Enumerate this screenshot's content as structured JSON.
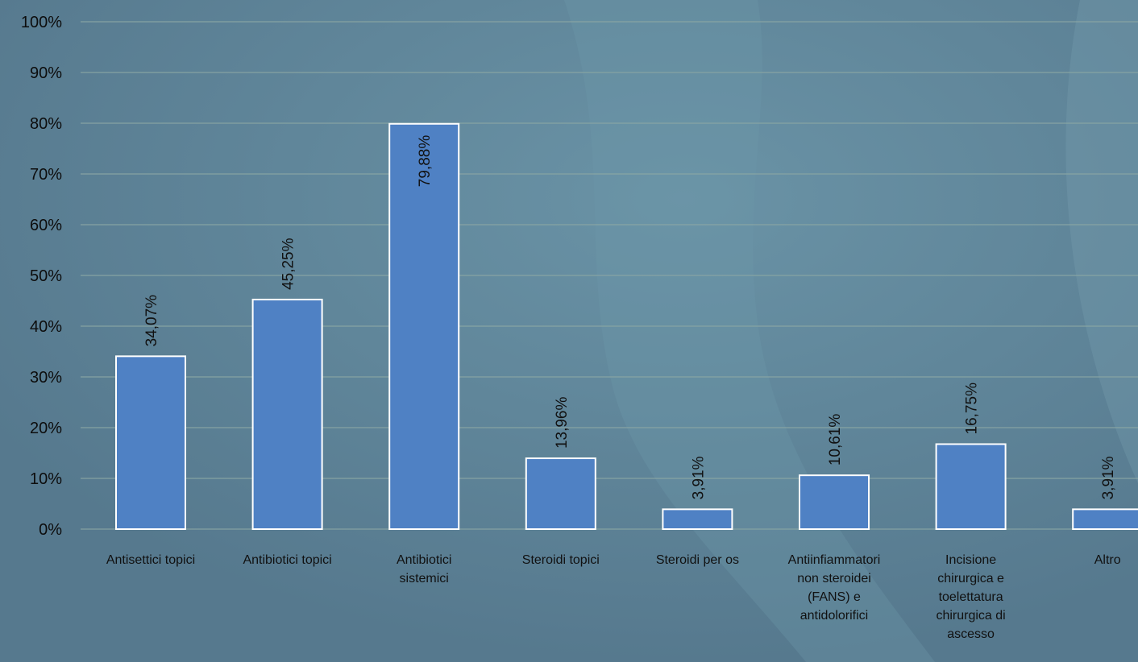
{
  "chart_data": {
    "type": "bar",
    "title": "",
    "xlabel": "",
    "ylabel": "",
    "ylim": [
      0,
      100
    ],
    "y_ticks": [
      "0%",
      "10%",
      "20%",
      "30%",
      "40%",
      "50%",
      "60%",
      "70%",
      "80%",
      "90%",
      "100%"
    ],
    "grid": true,
    "legend": "none",
    "categories": [
      [
        "Antisettici topici"
      ],
      [
        "Antibiotici topici"
      ],
      [
        "Antibiotici",
        "sistemici"
      ],
      [
        "Steroidi topici"
      ],
      [
        "Steroidi per os"
      ],
      [
        "Antiinfiammatori",
        "non steroidei",
        "(FANS) e",
        "antidolorifici"
      ],
      [
        "Incisione",
        "chirurgica e",
        "toelettatura",
        "chirurgica di",
        "ascesso"
      ],
      [
        "Altro"
      ]
    ],
    "values": [
      34.07,
      45.25,
      79.88,
      13.96,
      3.91,
      10.61,
      16.75,
      3.91
    ],
    "data_labels": [
      "34,07%",
      "45,25%",
      "79,88%",
      "13,96%",
      "3,91%",
      "10,61%",
      "16,75%",
      "3,91%"
    ],
    "colors": {
      "background": "#5d8398",
      "bar_fill": "#4f81c4",
      "bar_stroke": "#ffffff",
      "gridline": "#8aa6a4"
    }
  }
}
